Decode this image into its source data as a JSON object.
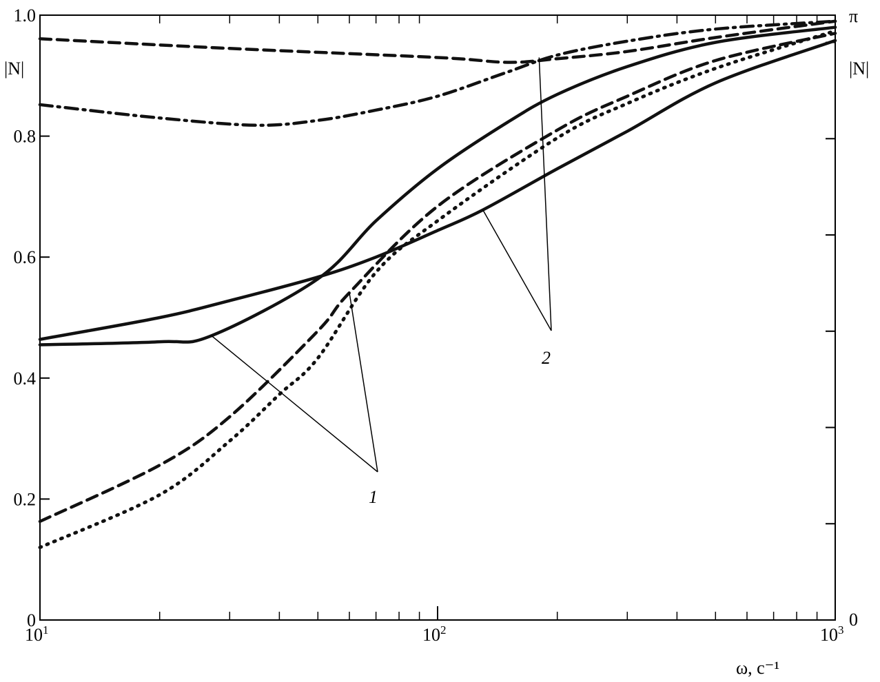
{
  "chart_data": {
    "type": "line",
    "title": "",
    "xlabel": "ω, c⁻¹",
    "ylabel_left": "|N|",
    "ylabel_right_top": "π",
    "ylabel_right": "|N|",
    "x_scale": "log",
    "xlim": [
      10,
      1000
    ],
    "ylim": [
      0,
      1.0
    ],
    "y_right_range_label": [
      "0",
      "π"
    ],
    "x_ticks": [
      {
        "value": 10,
        "base": "10",
        "exp": "1"
      },
      {
        "value": 100,
        "base": "10",
        "exp": "2"
      },
      {
        "value": 1000,
        "base": "10",
        "exp": "3"
      }
    ],
    "y_ticks_left": [
      {
        "value": 0,
        "label": "0"
      },
      {
        "value": 0.2,
        "label": "0.2"
      },
      {
        "value": 0.4,
        "label": "0.4"
      },
      {
        "value": 0.6,
        "label": "0.6"
      },
      {
        "value": 0.8,
        "label": "0.8"
      },
      {
        "value": 1.0,
        "label": "1.0"
      }
    ],
    "y_right_zero_label": "0",
    "grid": false,
    "series": [
      {
        "style": "solid",
        "x": [
          10,
          20,
          27,
          50,
          70,
          100,
          150,
          200,
          300,
          500,
          1000
        ],
        "y": [
          0.455,
          0.46,
          0.47,
          0.564,
          0.66,
          0.746,
          0.823,
          0.869,
          0.915,
          0.955,
          0.98
        ]
      },
      {
        "style": "solid",
        "x": [
          10,
          20,
          30,
          50,
          70,
          100,
          130,
          200,
          300,
          500,
          1000
        ],
        "y": [
          0.464,
          0.5,
          0.528,
          0.567,
          0.6,
          0.644,
          0.678,
          0.746,
          0.808,
          0.888,
          0.958
        ]
      },
      {
        "style": "dashed",
        "x": [
          10,
          20,
          30,
          50,
          60,
          100,
          200,
          300,
          500,
          1000
        ],
        "y": [
          0.163,
          0.256,
          0.336,
          0.478,
          0.541,
          0.684,
          0.81,
          0.866,
          0.925,
          0.97
        ]
      },
      {
        "style": "dotted",
        "x": [
          10,
          20,
          30,
          40,
          50,
          70,
          100,
          200,
          300,
          500,
          1000
        ],
        "y": [
          0.12,
          0.207,
          0.296,
          0.373,
          0.433,
          0.575,
          0.66,
          0.797,
          0.854,
          0.912,
          0.974
        ]
      },
      {
        "style": "dashed",
        "x": [
          10,
          30,
          100,
          150,
          200,
          300,
          500,
          1000
        ],
        "y": [
          0.961,
          0.945,
          0.93,
          0.922,
          0.928,
          0.94,
          0.963,
          0.99
        ]
      },
      {
        "style": "dashdot",
        "x": [
          10,
          20,
          35,
          50,
          70,
          100,
          150,
          200,
          300,
          500,
          1000
        ],
        "y": [
          0.852,
          0.83,
          0.818,
          0.826,
          0.843,
          0.866,
          0.906,
          0.934,
          0.957,
          0.977,
          0.99
        ]
      }
    ],
    "annotations": [
      {
        "label": "1",
        "points_to": [
          {
            "x": 27,
            "y": 0.47
          },
          {
            "x": 60,
            "y": 0.541
          }
        ]
      },
      {
        "label": "2",
        "points_to": [
          {
            "x": 130,
            "y": 0.678
          },
          {
            "x": 180,
            "y": 0.93
          }
        ]
      }
    ]
  }
}
